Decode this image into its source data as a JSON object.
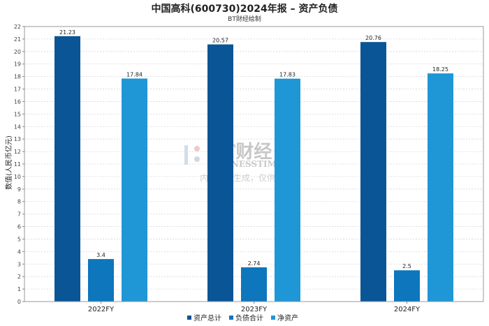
{
  "chart_data": {
    "type": "bar",
    "title": "中国高科(600730)2024年报 – 资产负债",
    "subtitle": "BT财经绘制",
    "ylabel": "数值(人民币亿元)",
    "xlabel": "",
    "categories": [
      "2022FY",
      "2023FY",
      "2024FY"
    ],
    "ylim": [
      0,
      22
    ],
    "yticks": [
      0,
      1,
      2,
      3,
      4,
      5,
      6,
      7,
      8,
      9,
      10,
      11,
      12,
      13,
      14,
      15,
      16,
      17,
      18,
      19,
      20,
      21,
      22
    ],
    "grid": true,
    "legend_position": "bottom-center",
    "series": [
      {
        "name": "资产总计",
        "color": "#0a5596",
        "values": [
          21.23,
          20.57,
          20.76
        ]
      },
      {
        "name": "负债合计",
        "color": "#0d76bd",
        "values": [
          3.4,
          2.74,
          2.5
        ]
      },
      {
        "name": "净资产",
        "color": "#1f96d6",
        "values": [
          17.84,
          17.83,
          18.25
        ]
      }
    ],
    "data_labels": [
      [
        "21.23",
        "20.57",
        "20.76"
      ],
      [
        "3.4",
        "2.74",
        "2.5"
      ],
      [
        "17.84",
        "17.83",
        "18.25"
      ]
    ]
  },
  "watermark": {
    "brand": "BT财经",
    "brand_en": "BUSINESSTIMES",
    "note": "内容由AI生成，仅供参考"
  }
}
